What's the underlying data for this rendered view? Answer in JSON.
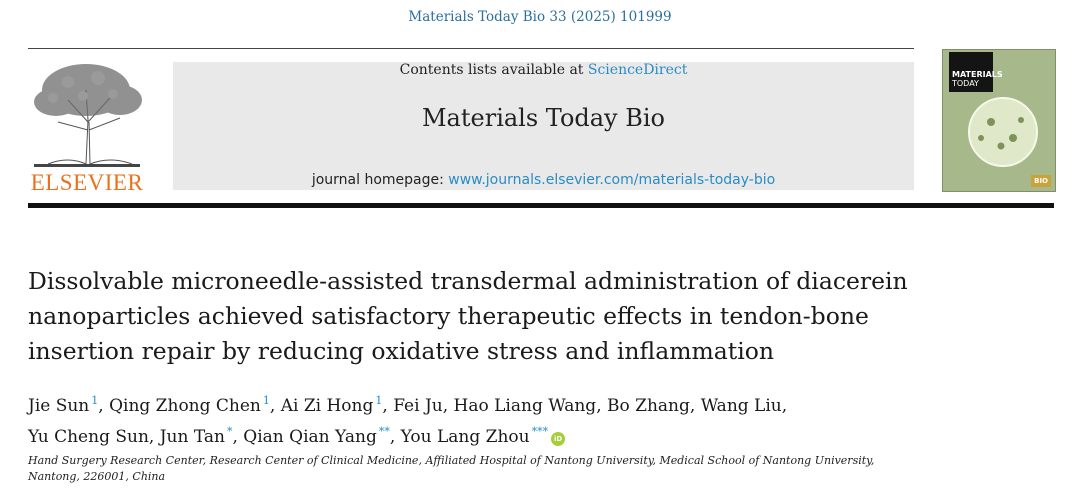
{
  "citation": "Materials Today Bio 33 (2025) 101999",
  "publisher": {
    "name": "ELSEVIER",
    "color": "#e9711c"
  },
  "banner": {
    "contents_prefix": "Contents lists available at ",
    "contents_link": "ScienceDirect",
    "journal_name": "Materials Today Bio",
    "homepage_prefix": "journal homepage: ",
    "homepage_link": "www.journals.elsevier.com/materials-today-bio"
  },
  "cover": {
    "title_line1": "MATERIALS",
    "title_line2": "TODAY",
    "badge": "BIO"
  },
  "article": {
    "title": "Dissolvable microneedle-assisted transdermal administration of diacerein nanoparticles achieved satisfactory therapeutic effects in tendon-bone insertion repair by reducing oxidative stress and inflammation",
    "authors": [
      {
        "name": "Jie Sun",
        "mark": "1"
      },
      {
        "name": "Qing Zhong Chen",
        "mark": "1"
      },
      {
        "name": "Ai Zi Hong",
        "mark": "1"
      },
      {
        "name": "Fei Ju",
        "mark": ""
      },
      {
        "name": "Hao Liang Wang",
        "mark": ""
      },
      {
        "name": "Bo Zhang",
        "mark": ""
      },
      {
        "name": "Wang Liu",
        "mark": ""
      },
      {
        "name": "Yu Cheng Sun",
        "mark": ""
      },
      {
        "name": "Jun Tan",
        "mark": "*"
      },
      {
        "name": "Qian Qian Yang",
        "mark": "**"
      },
      {
        "name": "You Lang Zhou",
        "mark": "***"
      }
    ],
    "orcid_label": "iD",
    "affiliation": "Hand Surgery Research Center, Research Center of Clinical Medicine, Affiliated Hospital of Nantong University, Medical School of Nantong University, Nantong, 226001, China"
  },
  "colors": {
    "link": "#2a8cc4",
    "citation": "#2a6f9b",
    "banner_bg": "#e9e9e9",
    "orcid": "#a6ce39"
  }
}
